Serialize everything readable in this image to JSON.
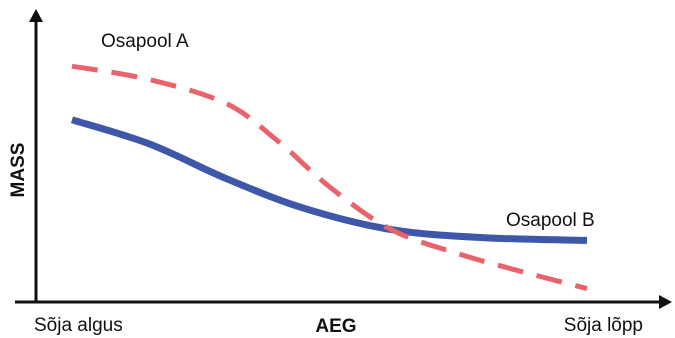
{
  "chart_data": {
    "type": "line",
    "title": "",
    "xlabel": "AEG",
    "ylabel": "MASS",
    "x_tick_labels": {
      "start": "Sõja algus",
      "end": "Sõja lõpp"
    },
    "xlim": [
      0,
      100
    ],
    "ylim": [
      0,
      100
    ],
    "grid": false,
    "legend": "none",
    "series": [
      {
        "name": "Osapool A",
        "style": "dashed",
        "color": "#e8636b",
        "x": [
          0,
          15,
          30,
          40,
          50,
          62,
          75,
          88,
          100
        ],
        "y": [
          88,
          83,
          74,
          60,
          43,
          27,
          18,
          11,
          5
        ]
      },
      {
        "name": "Osapool B",
        "style": "solid",
        "color": "#3f57a8",
        "x": [
          0,
          15,
          30,
          45,
          62,
          80,
          100
        ],
        "y": [
          68,
          59,
          46,
          35,
          27,
          24,
          23
        ]
      }
    ]
  }
}
